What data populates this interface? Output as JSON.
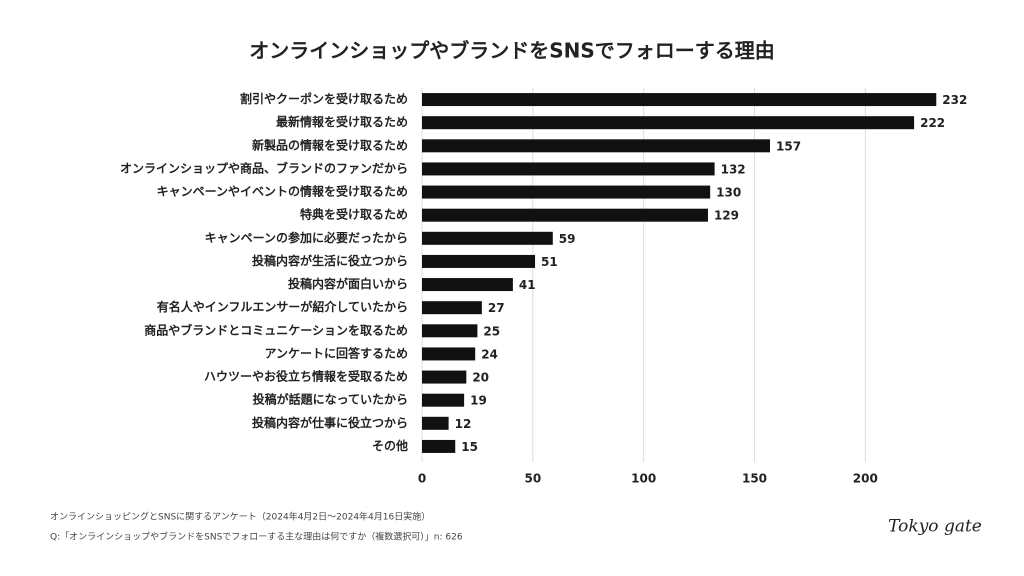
{
  "chart_data": {
    "type": "bar",
    "orientation": "horizontal",
    "title": "オンラインショップやブランドをSNSでフォローする理由",
    "categories": [
      "割引やクーポンを受け取るため",
      "最新情報を受け取るため",
      "新製品の情報を受け取るため",
      "オンラインショップや商品、ブランドのファンだから",
      "キャンペーンやイベントの情報を受け取るため",
      "特典を受け取るため",
      "キャンペーンの参加に必要だったから",
      "投稿内容が生活に役立つから",
      "投稿内容が面白いから",
      "有名人やインフルエンサーが紹介していたから",
      "商品やブランドとコミュニケーションを取るため",
      "アンケートに回答するため",
      "ハウツーやお役立ち情報を受取るため",
      "投稿が話題になっていたから",
      "投稿内容が仕事に役立つから",
      "その他"
    ],
    "values": [
      232,
      222,
      157,
      132,
      130,
      129,
      59,
      51,
      41,
      27,
      25,
      24,
      20,
      19,
      12,
      15
    ],
    "color": "#111111",
    "xlim": [
      0,
      240
    ],
    "xticks": [
      0,
      50,
      100,
      150,
      200
    ],
    "grid": true,
    "notes": [
      "オンラインショッピングとSNSに関するアンケート（2024年4月2日〜2024年4月16日実施）",
      "Q:「オンラインショップやブランドをSNSでフォローする主な理由は何ですか（複数選択可）」n: 626"
    ],
    "logo": "Tokyo gate"
  }
}
